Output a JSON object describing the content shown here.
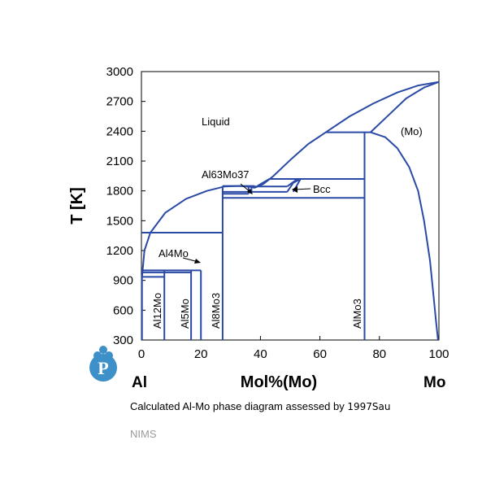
{
  "chart_data": {
    "type": "phase-diagram",
    "xlabel": "Mol%(Mo)",
    "ylabel": "T [K]",
    "xlim": [
      0,
      100
    ],
    "ylim": [
      300,
      3000
    ],
    "x_ticks": [
      "0",
      "20",
      "40",
      "60",
      "80",
      "100"
    ],
    "y_ticks": [
      "300",
      "600",
      "900",
      "1200",
      "1500",
      "1800",
      "2100",
      "2400",
      "2700",
      "3000"
    ],
    "left_element": "Al",
    "right_element": "Mo",
    "line_color": "#2a4aa6",
    "regions": {
      "liquid": "Liquid",
      "mo": "(Mo)",
      "bcc": "Bcc",
      "al63mo37": "Al63Mo37",
      "al4mo": "Al4Mo",
      "al12mo": "Al12Mo",
      "al5mo": "Al5Mo",
      "al8mo3": "Al8Mo3",
      "almo3": "AlMo3"
    },
    "compounds": [
      {
        "name": "Al12Mo",
        "x": 7.7,
        "t_top": 1000
      },
      {
        "name": "Al5Mo",
        "x": 16.7,
        "t_top": 1000
      },
      {
        "name": "Al4Mo",
        "x": 20.0,
        "t_top": 1380
      },
      {
        "name": "Al8Mo3",
        "x": 27.3,
        "t_top": 1850
      },
      {
        "name": "AlMo3",
        "x": 75.0,
        "t_top": 2390
      }
    ],
    "lines": [
      {
        "id": "liquidus-al-rich",
        "pts": [
          [
            0.2,
            933
          ],
          [
            1,
            1200
          ],
          [
            3,
            1380
          ],
          [
            8,
            1580
          ],
          [
            15,
            1720
          ],
          [
            22,
            1800
          ],
          [
            28,
            1845
          ],
          [
            33,
            1850
          ],
          [
            37,
            1840
          ],
          [
            38,
            1830
          ]
        ]
      },
      {
        "id": "liquidus-mo-rich",
        "pts": [
          [
            38,
            1830
          ],
          [
            41,
            1870
          ],
          [
            44,
            1940
          ],
          [
            50,
            2110
          ],
          [
            56,
            2270
          ],
          [
            62,
            2390
          ],
          [
            70,
            2550
          ],
          [
            78,
            2680
          ],
          [
            86,
            2790
          ],
          [
            93,
            2860
          ],
          [
            100,
            2896
          ]
        ]
      },
      {
        "id": "solidus-mo",
        "pts": [
          [
            77,
            2390
          ],
          [
            83,
            2560
          ],
          [
            89,
            2730
          ],
          [
            95,
            2840
          ],
          [
            100,
            2896
          ]
        ]
      },
      {
        "id": "solvus-mo",
        "pts": [
          [
            77,
            2390
          ],
          [
            82,
            2340
          ],
          [
            86,
            2230
          ],
          [
            90,
            2040
          ],
          [
            93,
            1800
          ],
          [
            95,
            1500
          ],
          [
            97,
            1100
          ],
          [
            98,
            800
          ],
          [
            99,
            500
          ],
          [
            99.7,
            300
          ]
        ]
      },
      {
        "id": "peritectic-2390",
        "pts": [
          [
            62,
            2390
          ],
          [
            77,
            2390
          ]
        ]
      },
      {
        "id": "bcc-top",
        "pts": [
          [
            43,
            1920
          ],
          [
            75,
            1920
          ]
        ]
      },
      {
        "id": "bcc-left-diag",
        "pts": [
          [
            43,
            1920
          ],
          [
            39,
            1850
          ]
        ]
      },
      {
        "id": "line-1850",
        "pts": [
          [
            27.3,
            1850
          ],
          [
            38,
            1850
          ]
        ]
      },
      {
        "id": "line-1845",
        "pts": [
          [
            37,
            1845
          ],
          [
            49,
            1845
          ]
        ]
      },
      {
        "id": "line-1790",
        "pts": [
          [
            27.3,
            1790
          ],
          [
            49,
            1790
          ]
        ]
      },
      {
        "id": "line-1770",
        "pts": [
          [
            27.3,
            1770
          ],
          [
            36,
            1770
          ]
        ]
      },
      {
        "id": "line-1730",
        "pts": [
          [
            27.3,
            1730
          ],
          [
            75,
            1730
          ]
        ]
      },
      {
        "id": "line-1380",
        "pts": [
          [
            0,
            1380
          ],
          [
            27.3,
            1380
          ]
        ]
      },
      {
        "id": "line-1000",
        "pts": [
          [
            0,
            1000
          ],
          [
            20,
            1000
          ]
        ]
      },
      {
        "id": "line-980",
        "pts": [
          [
            0,
            980
          ],
          [
            16.7,
            980
          ]
        ]
      },
      {
        "id": "line-935",
        "pts": [
          [
            0,
            935
          ],
          [
            7.7,
            935
          ]
        ]
      },
      {
        "id": "bcc-notch",
        "pts": [
          [
            49,
            1845
          ],
          [
            52,
            1910
          ],
          [
            53.5,
            1920
          ],
          [
            51,
            1880
          ],
          [
            49,
            1790
          ]
        ]
      },
      {
        "id": "bcc-notch-right",
        "pts": [
          [
            53.5,
            1920
          ],
          [
            51,
            1790
          ]
        ]
      },
      {
        "id": "al63mo37-box-left",
        "pts": [
          [
            36,
            1845
          ],
          [
            36,
            1770
          ]
        ]
      },
      {
        "id": "al63mo37-box-right",
        "pts": [
          [
            37,
            1845
          ],
          [
            37,
            1790
          ]
        ]
      },
      {
        "id": "al4mo-line",
        "pts": [
          [
            20,
            300
          ],
          [
            20,
            1000
          ]
        ]
      },
      {
        "id": "al5mo-line",
        "pts": [
          [
            16.7,
            300
          ],
          [
            16.7,
            1000
          ]
        ]
      },
      {
        "id": "al12mo-line",
        "pts": [
          [
            7.7,
            300
          ],
          [
            7.7,
            1000
          ]
        ]
      },
      {
        "id": "al8mo3-line",
        "pts": [
          [
            27.3,
            300
          ],
          [
            27.3,
            1850
          ]
        ]
      },
      {
        "id": "almo3-line",
        "pts": [
          [
            75,
            300
          ],
          [
            75,
            2390
          ]
        ]
      },
      {
        "id": "al-axis-line",
        "pts": [
          [
            0.2,
            300
          ],
          [
            0.2,
            933
          ]
        ]
      }
    ]
  },
  "caption": {
    "prefix": "Calculated Al-Mo phase diagram assessed by ",
    "source": "1997Sau"
  },
  "footer": "NIMS"
}
